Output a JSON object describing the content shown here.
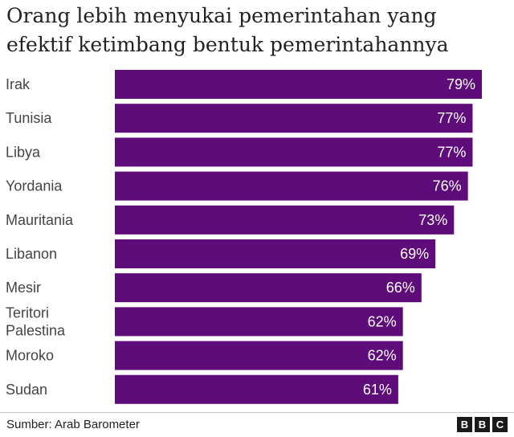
{
  "title": "Orang lebih menyukai pemerintahan yang efektif ketimbang bentuk pemerintahannya",
  "source": "Sumber: Arab Barometer",
  "logo_letters": [
    "B",
    "B",
    "C"
  ],
  "chart_data": {
    "type": "bar",
    "orientation": "horizontal",
    "title": "Orang lebih menyukai pemerintahan yang efektif ketimbang bentuk pemerintahannya",
    "categories": [
      "Irak",
      "Tunisia",
      "Libya",
      "Yordania",
      "Mauritania",
      "Libanon",
      "Mesir",
      "Teritori Palestina",
      "Moroko",
      "Sudan"
    ],
    "values": [
      79,
      77,
      77,
      76,
      73,
      69,
      66,
      62,
      62,
      61
    ],
    "value_labels": [
      "79%",
      "77%",
      "77%",
      "76%",
      "73%",
      "69%",
      "66%",
      "62%",
      "62%",
      "61%"
    ],
    "bar_color": "#5e0c79",
    "label_color": "#ffffff",
    "xlim": [
      0,
      79
    ],
    "grid": false,
    "legend": "none"
  }
}
